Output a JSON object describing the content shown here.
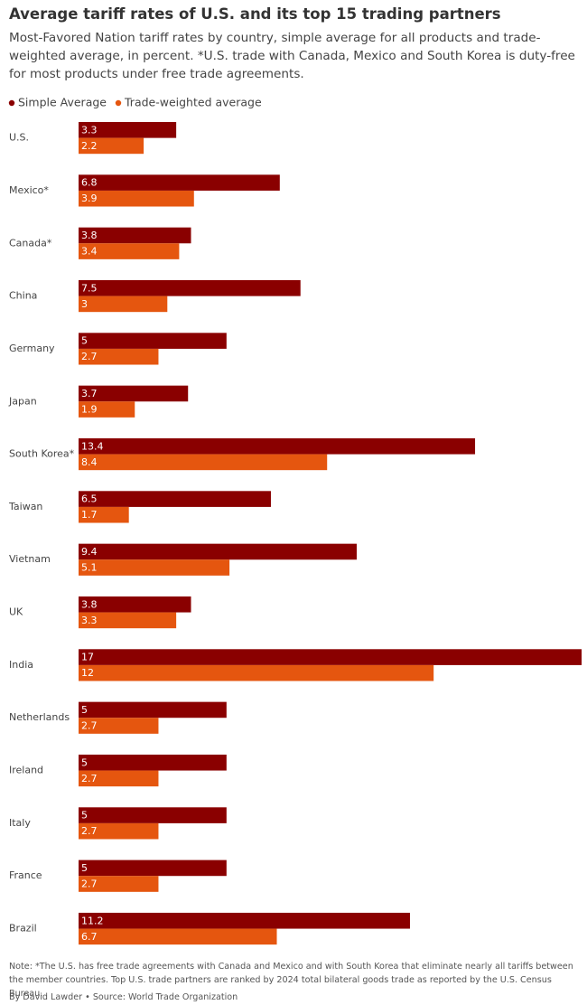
{
  "chart_data": {
    "type": "bar",
    "orientation": "horizontal",
    "title": "Average tariff rates of U.S. and its top 15 trading partners",
    "subtitle": "Most-Favored Nation tariff rates by country, simple average for all products and trade-weighted average, in percent. *U.S. trade with Canada, Mexico and South Korea is duty-free for most products under free trade agreements.",
    "categories": [
      "U.S.",
      "Mexico*",
      "Canada*",
      "China",
      "Germany",
      "Japan",
      "South Korea*",
      "Taiwan",
      "Vietnam",
      "UK",
      "India",
      "Netherlands",
      "Ireland",
      "Italy",
      "France",
      "Brazil"
    ],
    "series": [
      {
        "name": "Simple Average",
        "color": "#8a0000",
        "values": [
          3.3,
          6.8,
          3.8,
          7.5,
          5,
          3.7,
          13.4,
          6.5,
          9.4,
          3.8,
          17,
          5,
          5,
          5,
          5,
          11.2
        ]
      },
      {
        "name": "Trade-weighted average",
        "color": "#e5560f",
        "values": [
          2.2,
          3.9,
          3.4,
          3,
          2.7,
          1.9,
          8.4,
          1.7,
          5.1,
          3.3,
          12,
          2.7,
          2.7,
          2.7,
          2.7,
          6.7
        ]
      }
    ],
    "note": "Note: *The U.S. has free trade agreements with Canada and Mexico and with South Korea that eliminate nearly all tariffs between the member countries. Top U.S. trade partners are ranked by 2024 total bilateral goods trade as reported by the U.S. Census Bureau.",
    "source": "By David Lawder • Source: World Trade Organization"
  }
}
